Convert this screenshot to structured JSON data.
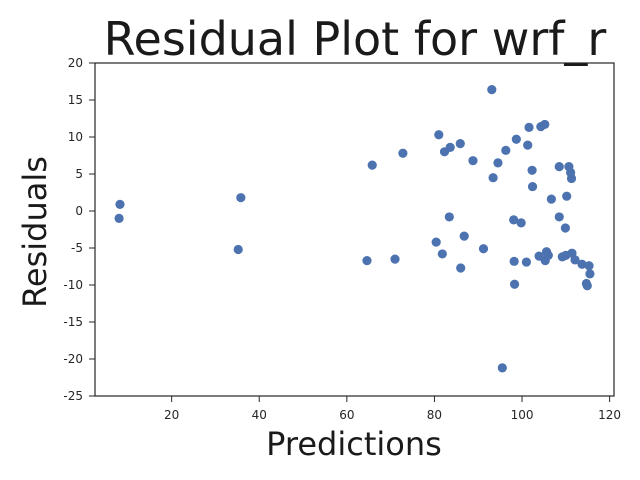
{
  "chart_data": {
    "type": "scatter",
    "title": "Residual Plot for wrf_r",
    "xlabel": "Predictions",
    "ylabel": "Residuals",
    "xlim": [
      2.5,
      121
    ],
    "ylim": [
      -25,
      20
    ],
    "xticks": [
      20,
      40,
      60,
      80,
      100,
      120
    ],
    "yticks": [
      20,
      15,
      10,
      5,
      0,
      -5,
      -10,
      -15,
      -20,
      -25
    ],
    "grid": false,
    "color": "#4c72b0",
    "points": [
      {
        "x": 8.2,
        "y": 0.9
      },
      {
        "x": 8.0,
        "y": -1.0
      },
      {
        "x": 35.8,
        "y": 1.8
      },
      {
        "x": 35.2,
        "y": -5.2
      },
      {
        "x": 64.6,
        "y": -6.7
      },
      {
        "x": 65.8,
        "y": 6.2
      },
      {
        "x": 71.0,
        "y": -6.5
      },
      {
        "x": 72.8,
        "y": 7.8
      },
      {
        "x": 80.4,
        "y": -4.2
      },
      {
        "x": 81.0,
        "y": 10.3
      },
      {
        "x": 81.8,
        "y": -5.8
      },
      {
        "x": 82.3,
        "y": 8.0
      },
      {
        "x": 83.6,
        "y": 8.6
      },
      {
        "x": 83.4,
        "y": -0.8
      },
      {
        "x": 85.9,
        "y": 9.1
      },
      {
        "x": 86.0,
        "y": -7.7
      },
      {
        "x": 86.8,
        "y": -3.4
      },
      {
        "x": 88.8,
        "y": 6.8
      },
      {
        "x": 91.2,
        "y": -5.1
      },
      {
        "x": 93.1,
        "y": 16.4
      },
      {
        "x": 93.4,
        "y": 4.5
      },
      {
        "x": 94.5,
        "y": 6.5
      },
      {
        "x": 95.5,
        "y": -21.2
      },
      {
        "x": 96.3,
        "y": 8.2
      },
      {
        "x": 98.1,
        "y": -1.2
      },
      {
        "x": 98.2,
        "y": -6.8
      },
      {
        "x": 98.3,
        "y": -9.9
      },
      {
        "x": 98.7,
        "y": 9.7
      },
      {
        "x": 99.8,
        "y": -1.6
      },
      {
        "x": 101.0,
        "y": -6.9
      },
      {
        "x": 101.3,
        "y": 8.9
      },
      {
        "x": 101.6,
        "y": 11.3
      },
      {
        "x": 102.3,
        "y": 5.5
      },
      {
        "x": 102.4,
        "y": 3.3
      },
      {
        "x": 103.9,
        "y": -6.1
      },
      {
        "x": 104.3,
        "y": 11.4
      },
      {
        "x": 105.2,
        "y": 11.7
      },
      {
        "x": 105.3,
        "y": -6.7
      },
      {
        "x": 105.6,
        "y": -5.5
      },
      {
        "x": 106.0,
        "y": -6.0
      },
      {
        "x": 106.7,
        "y": 1.6
      },
      {
        "x": 108.5,
        "y": -0.8
      },
      {
        "x": 108.5,
        "y": 6.0
      },
      {
        "x": 109.2,
        "y": -6.2
      },
      {
        "x": 109.9,
        "y": -2.3
      },
      {
        "x": 110.0,
        "y": -6.0
      },
      {
        "x": 110.2,
        "y": 2.0
      },
      {
        "x": 110.7,
        "y": 6.0
      },
      {
        "x": 111.1,
        "y": 5.2
      },
      {
        "x": 111.3,
        "y": 4.4
      },
      {
        "x": 111.4,
        "y": -5.7
      },
      {
        "x": 112.1,
        "y": -6.6
      },
      {
        "x": 113.7,
        "y": -7.2
      },
      {
        "x": 114.7,
        "y": -9.8
      },
      {
        "x": 114.9,
        "y": -10.1
      },
      {
        "x": 115.3,
        "y": -7.4
      },
      {
        "x": 115.5,
        "y": -8.5
      }
    ]
  }
}
